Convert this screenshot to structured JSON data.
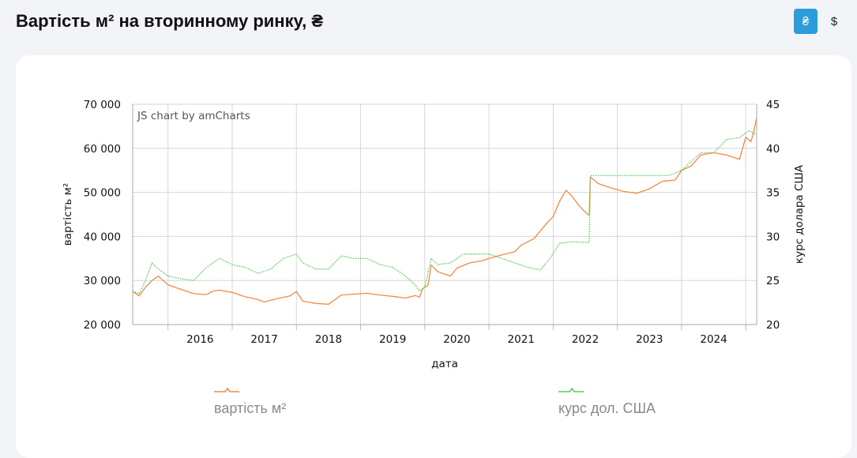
{
  "header": {
    "title": "Вартість м² на вторинному ринку, ₴",
    "currency_buttons": [
      {
        "label": "₴",
        "active": true
      },
      {
        "label": "$",
        "active": false
      }
    ]
  },
  "chart": {
    "credit": "JS chart by amCharts",
    "legend": [
      {
        "label": "вартість м²",
        "color": "#f58a42"
      },
      {
        "label": "курс дол. США",
        "color": "#5cc85c"
      }
    ]
  },
  "chart_data": {
    "type": "line",
    "xlabel": "дата",
    "ylabel_left": "вартість м²",
    "ylabel_right": "курс долара США",
    "y_left_lim": [
      20000,
      70000
    ],
    "y_right_lim": [
      20,
      45
    ],
    "y_left_ticks": [
      "70 000",
      "60 000",
      "50 000",
      "40 000",
      "30 000",
      "20 000"
    ],
    "y_right_ticks": [
      "45",
      "40",
      "35",
      "30",
      "25",
      "20"
    ],
    "x_range": [
      2015.45,
      2025.17
    ],
    "x_ticks": [
      "2016",
      "2017",
      "2018",
      "2019",
      "2020",
      "2021",
      "2022",
      "2023",
      "2024"
    ],
    "grid": true,
    "legend_position": "bottom",
    "series": [
      {
        "name": "вартість м²",
        "axis": "left",
        "color": "#f58a42",
        "points": [
          [
            2015.45,
            27500
          ],
          [
            2015.55,
            26500
          ],
          [
            2015.65,
            28500
          ],
          [
            2015.75,
            30000
          ],
          [
            2015.85,
            31000
          ],
          [
            2016.0,
            29000
          ],
          [
            2016.2,
            28000
          ],
          [
            2016.4,
            27000
          ],
          [
            2016.6,
            26800
          ],
          [
            2016.7,
            27600
          ],
          [
            2016.8,
            27800
          ],
          [
            2017.0,
            27300
          ],
          [
            2017.2,
            26300
          ],
          [
            2017.4,
            25700
          ],
          [
            2017.5,
            25100
          ],
          [
            2017.7,
            25900
          ],
          [
            2017.9,
            26500
          ],
          [
            2018.0,
            27500
          ],
          [
            2018.1,
            25300
          ],
          [
            2018.3,
            24800
          ],
          [
            2018.5,
            24600
          ],
          [
            2018.7,
            26700
          ],
          [
            2018.9,
            26900
          ],
          [
            2019.1,
            27100
          ],
          [
            2019.3,
            26700
          ],
          [
            2019.5,
            26400
          ],
          [
            2019.7,
            26000
          ],
          [
            2019.85,
            26600
          ],
          [
            2019.92,
            26200
          ],
          [
            2019.96,
            28000
          ],
          [
            2020.05,
            29000
          ],
          [
            2020.1,
            33500
          ],
          [
            2020.2,
            32000
          ],
          [
            2020.4,
            31000
          ],
          [
            2020.5,
            32800
          ],
          [
            2020.7,
            34000
          ],
          [
            2020.9,
            34500
          ],
          [
            2021.0,
            35000
          ],
          [
            2021.2,
            35800
          ],
          [
            2021.4,
            36500
          ],
          [
            2021.5,
            38000
          ],
          [
            2021.7,
            39500
          ],
          [
            2021.9,
            43000
          ],
          [
            2022.0,
            44500
          ],
          [
            2022.1,
            48000
          ],
          [
            2022.2,
            50500
          ],
          [
            2022.3,
            49000
          ],
          [
            2022.4,
            47000
          ],
          [
            2022.5,
            45500
          ],
          [
            2022.56,
            44800
          ],
          [
            2022.58,
            53500
          ],
          [
            2022.7,
            52000
          ],
          [
            2022.9,
            51000
          ],
          [
            2023.1,
            50200
          ],
          [
            2023.3,
            49800
          ],
          [
            2023.5,
            50800
          ],
          [
            2023.7,
            52500
          ],
          [
            2023.9,
            52800
          ],
          [
            2024.0,
            55000
          ],
          [
            2024.15,
            56000
          ],
          [
            2024.3,
            58500
          ],
          [
            2024.5,
            59000
          ],
          [
            2024.7,
            58500
          ],
          [
            2024.9,
            57500
          ],
          [
            2025.0,
            62500
          ],
          [
            2025.08,
            61500
          ],
          [
            2025.12,
            63500
          ],
          [
            2025.17,
            67000
          ]
        ]
      },
      {
        "name": "курс дол. США",
        "axis": "right",
        "color": "#5cc85c",
        "points": [
          [
            2015.45,
            23.8
          ],
          [
            2015.55,
            23.5
          ],
          [
            2015.65,
            25.0
          ],
          [
            2015.75,
            27.0
          ],
          [
            2015.85,
            26.3
          ],
          [
            2016.0,
            25.5
          ],
          [
            2016.2,
            25.2
          ],
          [
            2016.4,
            25.0
          ],
          [
            2016.6,
            26.5
          ],
          [
            2016.8,
            27.5
          ],
          [
            2017.0,
            26.8
          ],
          [
            2017.2,
            26.5
          ],
          [
            2017.4,
            25.8
          ],
          [
            2017.6,
            26.3
          ],
          [
            2017.8,
            27.5
          ],
          [
            2018.0,
            28.0
          ],
          [
            2018.1,
            27.0
          ],
          [
            2018.3,
            26.3
          ],
          [
            2018.5,
            26.3
          ],
          [
            2018.7,
            27.8
          ],
          [
            2018.9,
            27.5
          ],
          [
            2019.1,
            27.5
          ],
          [
            2019.3,
            26.8
          ],
          [
            2019.5,
            26.5
          ],
          [
            2019.7,
            25.5
          ],
          [
            2019.85,
            24.5
          ],
          [
            2019.92,
            23.8
          ],
          [
            2020.0,
            24.3
          ],
          [
            2020.1,
            27.5
          ],
          [
            2020.2,
            26.8
          ],
          [
            2020.4,
            27.0
          ],
          [
            2020.6,
            28.0
          ],
          [
            2020.8,
            28.0
          ],
          [
            2021.0,
            28.0
          ],
          [
            2021.2,
            27.5
          ],
          [
            2021.4,
            27.0
          ],
          [
            2021.6,
            26.5
          ],
          [
            2021.8,
            26.2
          ],
          [
            2021.95,
            27.5
          ],
          [
            2022.1,
            29.2
          ],
          [
            2022.3,
            29.4
          ],
          [
            2022.56,
            29.3
          ],
          [
            2022.58,
            36.9
          ],
          [
            2022.8,
            36.9
          ],
          [
            2023.0,
            36.9
          ],
          [
            2023.3,
            36.9
          ],
          [
            2023.5,
            36.9
          ],
          [
            2023.8,
            36.9
          ],
          [
            2024.0,
            37.5
          ],
          [
            2024.15,
            38.5
          ],
          [
            2024.3,
            39.5
          ],
          [
            2024.5,
            39.5
          ],
          [
            2024.7,
            41.0
          ],
          [
            2024.9,
            41.2
          ],
          [
            2025.05,
            42.0
          ],
          [
            2025.17,
            41.5
          ]
        ]
      }
    ]
  }
}
